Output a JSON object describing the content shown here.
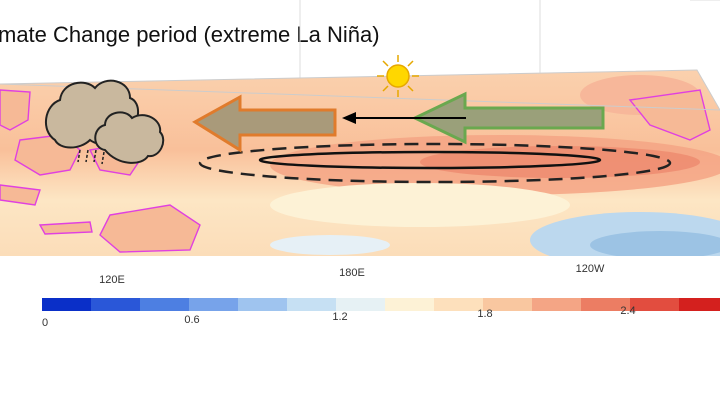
{
  "header": {
    "title": "mate Change period (extreme La Niña)"
  },
  "map": {
    "longitude_labels": [
      "120E",
      "180E",
      "120W"
    ]
  },
  "colorbar": {
    "labels": [
      "0",
      "0.6",
      "1.2",
      "1.8",
      "2.4"
    ]
  }
}
